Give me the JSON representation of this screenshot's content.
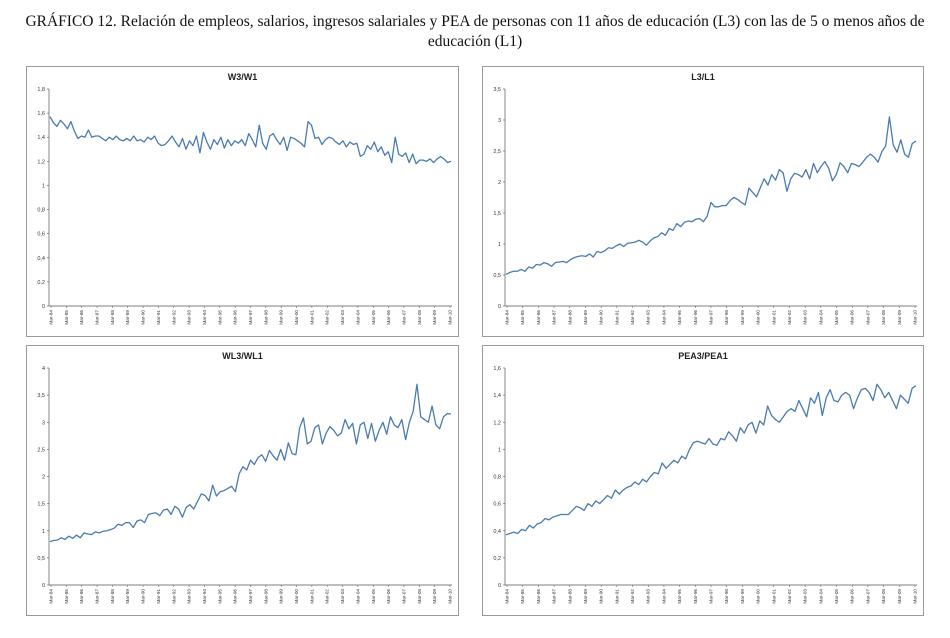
{
  "page": {
    "title": "GRÁFICO 12. Relación de empleos, salarios, ingresos salariales y PEA de personas con 11 años de educación (L3) con las de 5 o menos años de educación (L1)"
  },
  "style": {
    "line_color": "#4a7bb0",
    "axis_color": "#555555"
  },
  "chart_data": [
    {
      "type": "line",
      "title": "W3/W1",
      "ylim": [
        0,
        1.8
      ],
      "yticks": [
        "0",
        "0,2",
        "0,4",
        "0,6",
        "0,8",
        "1",
        "1,2",
        "1,4",
        "1,6",
        "1,8"
      ],
      "x_tick_labels": [
        "Mar-84",
        "Mar-85",
        "Mar-86",
        "Mar-87",
        "Mar-88",
        "Mar-89",
        "Mar-90",
        "Mar-91",
        "Mar-92",
        "Mar-93",
        "Mar-94",
        "Mar-95",
        "Mar-96",
        "Mar-97",
        "Mar-98",
        "Mar-99",
        "Mar-00",
        "Mar-01",
        "Mar-02",
        "Mar-03",
        "Mar-04",
        "Mar-05",
        "Mar-06",
        "Mar-07",
        "Mar-08",
        "Mar-09",
        "Mar-10"
      ],
      "values": [
        1.57,
        1.52,
        1.49,
        1.54,
        1.51,
        1.47,
        1.53,
        1.45,
        1.39,
        1.41,
        1.4,
        1.46,
        1.4,
        1.41,
        1.41,
        1.39,
        1.37,
        1.4,
        1.38,
        1.41,
        1.38,
        1.37,
        1.39,
        1.37,
        1.41,
        1.37,
        1.38,
        1.36,
        1.4,
        1.38,
        1.41,
        1.35,
        1.33,
        1.34,
        1.37,
        1.41,
        1.36,
        1.32,
        1.39,
        1.3,
        1.37,
        1.33,
        1.41,
        1.27,
        1.44,
        1.36,
        1.3,
        1.38,
        1.34,
        1.4,
        1.31,
        1.38,
        1.33,
        1.37,
        1.35,
        1.38,
        1.33,
        1.43,
        1.38,
        1.32,
        1.5,
        1.35,
        1.3,
        1.41,
        1.43,
        1.38,
        1.34,
        1.4,
        1.29,
        1.4,
        1.39,
        1.37,
        1.35,
        1.32,
        1.53,
        1.5,
        1.39,
        1.4,
        1.34,
        1.38,
        1.4,
        1.39,
        1.36,
        1.34,
        1.37,
        1.32,
        1.36,
        1.34,
        1.35,
        1.24,
        1.26,
        1.33,
        1.3,
        1.36,
        1.28,
        1.32,
        1.25,
        1.28,
        1.19,
        1.4,
        1.26,
        1.24,
        1.27,
        1.19,
        1.26,
        1.18,
        1.21,
        1.21,
        1.2,
        1.22,
        1.19,
        1.22,
        1.24,
        1.22,
        1.19,
        1.2
      ]
    },
    {
      "type": "line",
      "title": "L3/L1",
      "ylim": [
        0,
        3.5
      ],
      "yticks": [
        "0",
        "0,5",
        "1",
        "1,5",
        "2",
        "2,5",
        "3",
        "3,5"
      ],
      "x_tick_labels": [
        "Mar-84",
        "Mar-85",
        "Mar-86",
        "Mar-87",
        "Mar-88",
        "Mar-89",
        "Mar-90",
        "Mar-91",
        "Mar-92",
        "Mar-93",
        "Mar-94",
        "Mar-95",
        "Mar-96",
        "Mar-97",
        "Mar-98",
        "Mar-99",
        "Mar-00",
        "Mar-01",
        "Mar-02",
        "Mar-03",
        "Mar-04",
        "Mar-05",
        "Mar-06",
        "Mar-07",
        "Mar-08",
        "Mar-09",
        "Mar-10"
      ],
      "values": [
        0.51,
        0.54,
        0.56,
        0.56,
        0.59,
        0.56,
        0.63,
        0.61,
        0.67,
        0.66,
        0.7,
        0.68,
        0.64,
        0.7,
        0.71,
        0.72,
        0.7,
        0.75,
        0.78,
        0.8,
        0.81,
        0.8,
        0.84,
        0.79,
        0.88,
        0.86,
        0.89,
        0.94,
        0.93,
        0.97,
        1.0,
        0.96,
        1.01,
        1.02,
        1.03,
        1.06,
        1.03,
        0.98,
        1.05,
        1.1,
        1.12,
        1.18,
        1.14,
        1.25,
        1.22,
        1.33,
        1.28,
        1.35,
        1.37,
        1.36,
        1.4,
        1.41,
        1.36,
        1.45,
        1.67,
        1.6,
        1.6,
        1.62,
        1.62,
        1.7,
        1.75,
        1.72,
        1.67,
        1.63,
        1.9,
        1.83,
        1.76,
        1.91,
        2.05,
        1.95,
        2.12,
        2.03,
        2.2,
        2.15,
        1.85,
        2.05,
        2.14,
        2.12,
        2.08,
        2.2,
        2.05,
        2.3,
        2.15,
        2.25,
        2.33,
        2.22,
        2.02,
        2.12,
        2.31,
        2.25,
        2.15,
        2.3,
        2.28,
        2.25,
        2.32,
        2.4,
        2.45,
        2.4,
        2.32,
        2.49,
        2.58,
        3.05,
        2.6,
        2.48,
        2.68,
        2.45,
        2.4,
        2.62,
        2.66
      ]
    },
    {
      "type": "line",
      "title": "WL3/WL1",
      "ylim": [
        0,
        4
      ],
      "yticks": [
        "0",
        "0,5",
        "1",
        "1,5",
        "2",
        "2,5",
        "3",
        "3,5",
        "4"
      ],
      "x_tick_labels": [
        "Mar-84",
        "Mar-85",
        "Mar-86",
        "Mar-87",
        "Mar-88",
        "Mar-89",
        "Mar-90",
        "Mar-91",
        "Mar-92",
        "Mar-93",
        "Mar-94",
        "Mar-95",
        "Mar-96",
        "Mar-97",
        "Mar-98",
        "Mar-99",
        "Mar-00",
        "Mar-01",
        "Mar-02",
        "Mar-03",
        "Mar-04",
        "Mar-05",
        "Mar-06",
        "Mar-07",
        "Mar-08",
        "Mar-09",
        "Mar-10"
      ],
      "values": [
        0.8,
        0.82,
        0.83,
        0.87,
        0.84,
        0.9,
        0.86,
        0.92,
        0.87,
        0.96,
        0.94,
        0.93,
        0.98,
        0.96,
        0.99,
        1.0,
        1.02,
        1.05,
        1.12,
        1.1,
        1.15,
        1.15,
        1.06,
        1.18,
        1.2,
        1.15,
        1.3,
        1.32,
        1.33,
        1.28,
        1.38,
        1.4,
        1.3,
        1.45,
        1.4,
        1.25,
        1.43,
        1.48,
        1.4,
        1.54,
        1.68,
        1.65,
        1.55,
        1.84,
        1.64,
        1.72,
        1.74,
        1.78,
        1.82,
        1.72,
        2.05,
        2.18,
        2.12,
        2.3,
        2.22,
        2.35,
        2.4,
        2.28,
        2.48,
        2.38,
        2.3,
        2.5,
        2.3,
        2.62,
        2.42,
        2.4,
        2.9,
        3.08,
        2.6,
        2.65,
        2.9,
        2.95,
        2.6,
        2.8,
        2.92,
        2.85,
        2.75,
        2.8,
        3.05,
        2.88,
        2.98,
        2.6,
        2.95,
        3.0,
        2.7,
        2.98,
        2.65,
        2.85,
        3.0,
        2.78,
        3.1,
        2.95,
        2.9,
        3.05,
        2.68,
        3.0,
        3.2,
        3.7,
        3.1,
        3.05,
        3.0,
        3.3,
        2.95,
        2.88,
        3.1,
        3.16,
        3.15
      ]
    },
    {
      "type": "line",
      "title": "PEA3/PEA1",
      "ylim": [
        0,
        1.6
      ],
      "yticks": [
        "0",
        "0,2",
        "0,4",
        "0,6",
        "0,8",
        "1",
        "1,2",
        "1,4",
        "1,6"
      ],
      "x_tick_labels": [
        "Mar-84",
        "Mar-85",
        "Mar-86",
        "Mar-87",
        "Mar-88",
        "Mar-89",
        "Mar-90",
        "Mar-91",
        "Mar-92",
        "Mar-93",
        "Mar-94",
        "Mar-95",
        "Mar-96",
        "Mar-97",
        "Mar-98",
        "Mar-99",
        "Mar-00",
        "Mar-01",
        "Mar-02",
        "Mar-03",
        "Mar-04",
        "Mar-05",
        "Mar-06",
        "Mar-07",
        "Mar-08",
        "Mar-09",
        "Mar-10"
      ],
      "values": [
        0.37,
        0.38,
        0.39,
        0.38,
        0.41,
        0.4,
        0.44,
        0.42,
        0.45,
        0.46,
        0.49,
        0.48,
        0.5,
        0.51,
        0.52,
        0.52,
        0.52,
        0.55,
        0.58,
        0.57,
        0.55,
        0.6,
        0.58,
        0.62,
        0.6,
        0.63,
        0.66,
        0.64,
        0.7,
        0.67,
        0.7,
        0.72,
        0.73,
        0.76,
        0.74,
        0.78,
        0.76,
        0.8,
        0.83,
        0.82,
        0.9,
        0.86,
        0.89,
        0.92,
        0.9,
        0.95,
        0.93,
        1.0,
        1.05,
        1.06,
        1.05,
        1.04,
        1.08,
        1.04,
        1.03,
        1.08,
        1.07,
        1.13,
        1.1,
        1.06,
        1.16,
        1.12,
        1.18,
        1.2,
        1.12,
        1.21,
        1.18,
        1.32,
        1.25,
        1.22,
        1.2,
        1.24,
        1.28,
        1.3,
        1.28,
        1.36,
        1.3,
        1.24,
        1.38,
        1.34,
        1.42,
        1.25,
        1.38,
        1.44,
        1.36,
        1.35,
        1.4,
        1.42,
        1.4,
        1.3,
        1.38,
        1.44,
        1.45,
        1.42,
        1.36,
        1.48,
        1.44,
        1.38,
        1.42,
        1.36,
        1.3,
        1.4,
        1.37,
        1.34,
        1.45,
        1.47
      ]
    }
  ]
}
